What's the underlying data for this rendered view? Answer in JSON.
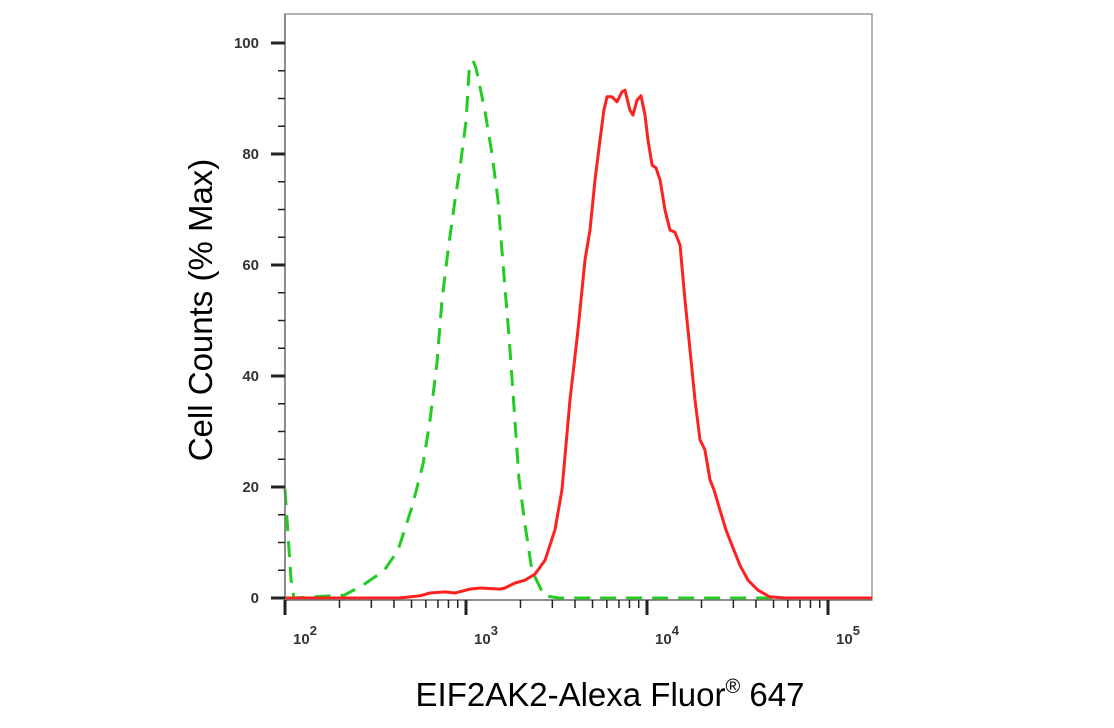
{
  "chart_data": {
    "type": "line",
    "title": "",
    "xlabel": "EIF2AK2-Alexa Fluor® 647",
    "ylabel": "Cell Counts (% Max)",
    "x_scale": "log",
    "xlim": [
      100,
      175000
    ],
    "ylim": [
      0,
      100
    ],
    "grid": false,
    "legend": "none",
    "x_ticks": [
      {
        "value": 100,
        "base": "10",
        "exp": "2"
      },
      {
        "value": 1000,
        "base": "10",
        "exp": "3"
      },
      {
        "value": 10000,
        "base": "10",
        "exp": "4"
      },
      {
        "value": 100000,
        "base": "10",
        "exp": "5"
      }
    ],
    "y_ticks": [
      "0",
      "20",
      "40",
      "60",
      "80",
      "100"
    ],
    "series": [
      {
        "color": "#22cc22",
        "style": "dashed",
        "points": [
          [
            100,
            19.6
          ],
          [
            108,
            3.4
          ],
          [
            112,
            0
          ],
          [
            141,
            0.2
          ],
          [
            212,
            0.5
          ],
          [
            266,
            2.2
          ],
          [
            352,
            4.9
          ],
          [
            421,
            8.6
          ],
          [
            503,
            16.4
          ],
          [
            579,
            24.1
          ],
          [
            632,
            31.9
          ],
          [
            691,
            42.2
          ],
          [
            737,
            53.7
          ],
          [
            796,
            62.7
          ],
          [
            869,
            71.7
          ],
          [
            927,
            77.5
          ],
          [
            1000,
            85.9
          ],
          [
            1040,
            94.9
          ],
          [
            1094,
            96.8
          ],
          [
            1136,
            95.5
          ],
          [
            1273,
            87.7
          ],
          [
            1392,
            80.0
          ],
          [
            1503,
            71.7
          ],
          [
            1601,
            60.2
          ],
          [
            1728,
            47.2
          ],
          [
            1842,
            34.4
          ],
          [
            1963,
            21.4
          ],
          [
            2118,
            13.2
          ],
          [
            2316,
            4.9
          ],
          [
            2700,
            0.4
          ],
          [
            3266,
            0
          ],
          [
            175000,
            0
          ]
        ]
      },
      {
        "color": "#ff2020",
        "style": "solid",
        "points": [
          [
            100,
            0
          ],
          [
            295,
            0
          ],
          [
            431,
            0
          ],
          [
            557,
            0.4
          ],
          [
            632,
            0.9
          ],
          [
            766,
            1.1
          ],
          [
            869,
            0.9
          ],
          [
            1052,
            1.6
          ],
          [
            1194,
            1.8
          ],
          [
            1541,
            1.6
          ],
          [
            1641,
            1.8
          ],
          [
            1866,
            2.7
          ],
          [
            2118,
            3.2
          ],
          [
            2405,
            4.3
          ],
          [
            2732,
            6.8
          ],
          [
            3103,
            12.3
          ],
          [
            3390,
            19.5
          ],
          [
            3755,
            35.7
          ],
          [
            4158,
            48.3
          ],
          [
            4545,
            60.9
          ],
          [
            4842,
            66.3
          ],
          [
            5160,
            75.3
          ],
          [
            5500,
            82.5
          ],
          [
            5780,
            87.9
          ],
          [
            6010,
            90.3
          ],
          [
            6410,
            90.3
          ],
          [
            6830,
            89.4
          ],
          [
            7280,
            91.2
          ],
          [
            7560,
            91.5
          ],
          [
            8050,
            87.9
          ],
          [
            8370,
            87.0
          ],
          [
            8810,
            89.7
          ],
          [
            9270,
            90.5
          ],
          [
            9750,
            87.0
          ],
          [
            10130,
            82.5
          ],
          [
            10670,
            78.0
          ],
          [
            11220,
            77.5
          ],
          [
            11810,
            75.3
          ],
          [
            12570,
            69.9
          ],
          [
            13400,
            66.3
          ],
          [
            14280,
            65.9
          ],
          [
            15220,
            63.6
          ],
          [
            16220,
            53.7
          ],
          [
            17280,
            44.7
          ],
          [
            18410,
            35.7
          ],
          [
            19620,
            28.5
          ],
          [
            20900,
            26.7
          ],
          [
            22280,
            21.3
          ],
          [
            23440,
            19.5
          ],
          [
            25290,
            15.9
          ],
          [
            27300,
            12.3
          ],
          [
            29480,
            9.5
          ],
          [
            32660,
            5.9
          ],
          [
            36160,
            3.2
          ],
          [
            41040,
            1.4
          ],
          [
            47830,
            0.2
          ],
          [
            57830,
            0
          ],
          [
            175000,
            0
          ]
        ]
      }
    ]
  }
}
